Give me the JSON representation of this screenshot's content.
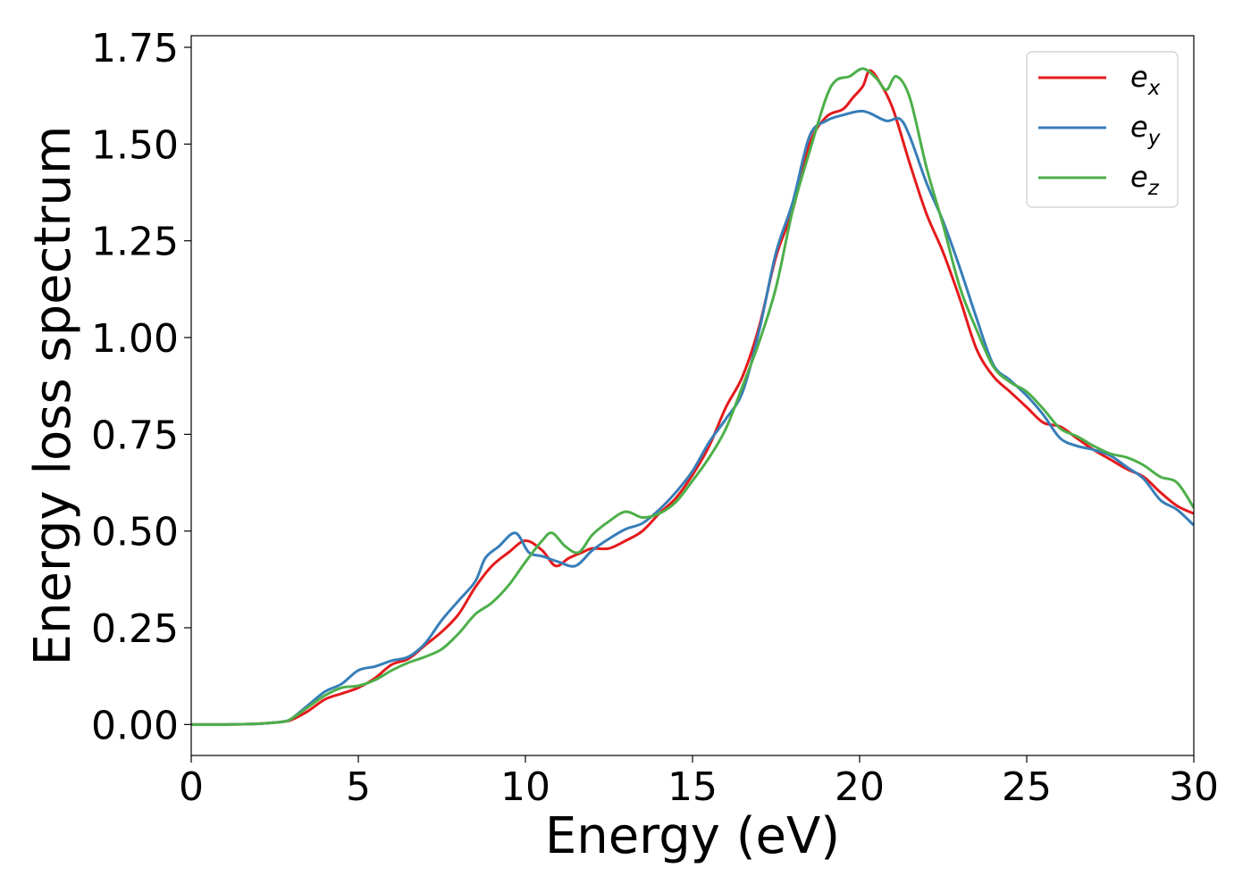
{
  "chart_data": {
    "type": "line",
    "title": "",
    "xlabel": "Energy (eV)",
    "ylabel": "Energy loss spectrum",
    "xlim": [
      0,
      30
    ],
    "ylim": [
      -0.08,
      1.78
    ],
    "xticks": [
      0,
      5,
      10,
      15,
      20,
      25,
      30
    ],
    "xtick_labels": [
      "0",
      "5",
      "10",
      "15",
      "20",
      "25",
      "30"
    ],
    "yticks": [
      0,
      0.25,
      0.5,
      0.75,
      1.0,
      1.25,
      1.5,
      1.75
    ],
    "ytick_labels": [
      "0.00",
      "0.25",
      "0.50",
      "0.75",
      "1.00",
      "1.25",
      "1.50",
      "1.75"
    ],
    "grid": false,
    "legend_position": "top-right",
    "series": [
      {
        "name": "e",
        "subscript": "x",
        "color": "#e41a1c",
        "x": [
          0,
          1,
          2,
          2.5,
          2.8,
          3.0,
          3.5,
          4.0,
          4.5,
          5.0,
          5.5,
          6.0,
          6.5,
          7.0,
          7.5,
          8.0,
          8.5,
          9.0,
          9.5,
          10.0,
          10.5,
          10.9,
          11.3,
          11.7,
          12.0,
          12.5,
          13.0,
          13.5,
          14.0,
          14.5,
          15.0,
          15.5,
          16.0,
          16.5,
          17.0,
          17.5,
          18.0,
          18.5,
          19.0,
          19.5,
          19.8,
          20.1,
          20.3,
          20.6,
          21.0,
          21.5,
          22.0,
          22.5,
          23.0,
          23.5,
          24.0,
          24.5,
          25.0,
          25.5,
          26.0,
          26.5,
          27.0,
          27.5,
          28.0,
          28.5,
          29.0,
          29.5,
          30.0
        ],
        "y": [
          0,
          0,
          0.002,
          0.005,
          0.008,
          0.012,
          0.035,
          0.065,
          0.08,
          0.095,
          0.12,
          0.155,
          0.17,
          0.205,
          0.24,
          0.285,
          0.355,
          0.41,
          0.445,
          0.475,
          0.45,
          0.41,
          0.43,
          0.445,
          0.455,
          0.455,
          0.475,
          0.5,
          0.545,
          0.585,
          0.645,
          0.72,
          0.82,
          0.9,
          1.03,
          1.21,
          1.33,
          1.5,
          1.57,
          1.59,
          1.62,
          1.65,
          1.69,
          1.66,
          1.59,
          1.45,
          1.32,
          1.22,
          1.1,
          0.97,
          0.9,
          0.86,
          0.82,
          0.78,
          0.77,
          0.74,
          0.71,
          0.685,
          0.66,
          0.64,
          0.6,
          0.565,
          0.545
        ]
      },
      {
        "name": "e",
        "subscript": "y",
        "color": "#377eb8",
        "x": [
          0,
          1,
          2,
          2.5,
          2.8,
          3.0,
          3.5,
          4.0,
          4.5,
          5.0,
          5.5,
          6.0,
          6.5,
          7.0,
          7.5,
          8.0,
          8.5,
          8.8,
          9.2,
          9.7,
          10.1,
          10.5,
          11.0,
          11.5,
          12.0,
          12.5,
          13.0,
          13.5,
          14.0,
          14.5,
          15.0,
          15.5,
          16.0,
          16.5,
          17.0,
          17.5,
          18.0,
          18.5,
          19.0,
          19.5,
          20.0,
          20.3,
          20.8,
          21.2,
          21.5,
          22.0,
          22.5,
          23.0,
          23.5,
          24.0,
          24.5,
          25.0,
          25.5,
          26.0,
          26.5,
          27.0,
          27.5,
          28.0,
          28.5,
          29.0,
          29.5,
          30.0
        ],
        "y": [
          0,
          0,
          0.002,
          0.005,
          0.008,
          0.015,
          0.05,
          0.085,
          0.105,
          0.14,
          0.15,
          0.165,
          0.175,
          0.21,
          0.27,
          0.32,
          0.37,
          0.43,
          0.46,
          0.495,
          0.445,
          0.435,
          0.42,
          0.41,
          0.45,
          0.48,
          0.505,
          0.52,
          0.555,
          0.6,
          0.655,
          0.73,
          0.79,
          0.86,
          1.02,
          1.22,
          1.35,
          1.52,
          1.56,
          1.575,
          1.585,
          1.58,
          1.56,
          1.565,
          1.52,
          1.4,
          1.3,
          1.18,
          1.05,
          0.93,
          0.89,
          0.85,
          0.8,
          0.74,
          0.72,
          0.71,
          0.695,
          0.665,
          0.635,
          0.58,
          0.555,
          0.515
        ]
      },
      {
        "name": "e",
        "subscript": "z",
        "color": "#4daf4a",
        "x": [
          0,
          1,
          2,
          2.5,
          2.8,
          3.0,
          3.5,
          4.0,
          4.5,
          5.0,
          5.5,
          6.0,
          6.5,
          7.0,
          7.5,
          8.0,
          8.5,
          9.0,
          9.5,
          10.0,
          10.5,
          10.8,
          11.2,
          11.6,
          12.0,
          12.5,
          13.0,
          13.5,
          14.0,
          14.5,
          15.0,
          15.5,
          16.0,
          16.5,
          17.0,
          17.5,
          18.0,
          18.5,
          19.0,
          19.3,
          19.7,
          20.1,
          20.5,
          20.8,
          21.1,
          21.5,
          22.0,
          22.5,
          23.0,
          23.5,
          24.0,
          24.5,
          25.0,
          25.5,
          26.0,
          26.5,
          27.0,
          27.5,
          28.0,
          28.5,
          29.0,
          29.5,
          30.0
        ],
        "y": [
          0,
          0,
          0.002,
          0.005,
          0.008,
          0.015,
          0.045,
          0.075,
          0.095,
          0.1,
          0.115,
          0.14,
          0.16,
          0.175,
          0.195,
          0.235,
          0.285,
          0.315,
          0.36,
          0.42,
          0.475,
          0.495,
          0.46,
          0.445,
          0.49,
          0.525,
          0.55,
          0.535,
          0.545,
          0.575,
          0.63,
          0.69,
          0.765,
          0.875,
          0.99,
          1.13,
          1.33,
          1.48,
          1.62,
          1.665,
          1.675,
          1.695,
          1.67,
          1.64,
          1.675,
          1.62,
          1.44,
          1.29,
          1.13,
          1.02,
          0.925,
          0.885,
          0.86,
          0.815,
          0.765,
          0.745,
          0.72,
          0.7,
          0.69,
          0.67,
          0.64,
          0.625,
          0.56
        ]
      }
    ]
  }
}
